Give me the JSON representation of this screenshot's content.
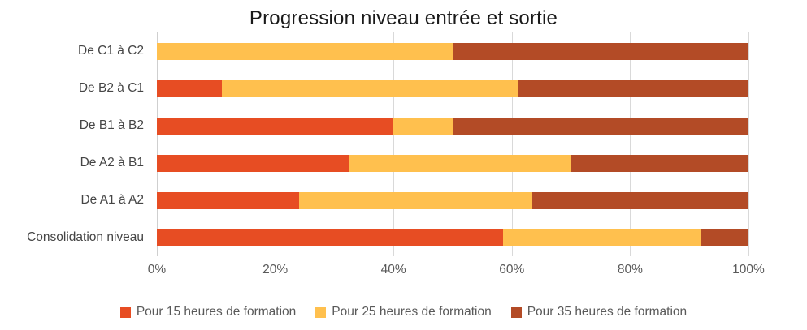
{
  "title": "Progression niveau entrée et sortie",
  "colors": {
    "series1": "#E74D23",
    "series2": "#FFC04E",
    "series3": "#B34B26",
    "gridline": "#D9D9D9",
    "axis_text": "#595959",
    "category_text": "#454545",
    "title_text": "#1A1A1A"
  },
  "chart_data": {
    "type": "bar",
    "orientation": "horizontal",
    "stacked": true,
    "unit": "%",
    "title": "Progression niveau entrée et sortie",
    "categories": [
      "De C1 à C2",
      "De B2 à C1",
      "De B1 à B2",
      "De A2 à B1",
      "De A1 à A2",
      "Consolidation niveau"
    ],
    "series": [
      {
        "name": "Pour 15 heures de formation",
        "color": "#E74D23",
        "values": [
          0,
          11,
          40,
          32.5,
          24,
          58.5
        ]
      },
      {
        "name": "Pour 25 heures de formation",
        "color": "#FFC04E",
        "values": [
          50,
          50,
          10,
          37.5,
          39.5,
          33.5
        ]
      },
      {
        "name": "Pour 35 heures de formation",
        "color": "#B34B26",
        "values": [
          50,
          39,
          50,
          30,
          36.5,
          8
        ]
      }
    ],
    "x_ticks": [
      "0%",
      "20%",
      "40%",
      "60%",
      "80%",
      "100%"
    ],
    "xlim": [
      0,
      100
    ],
    "grid": true,
    "legend_position": "bottom"
  }
}
